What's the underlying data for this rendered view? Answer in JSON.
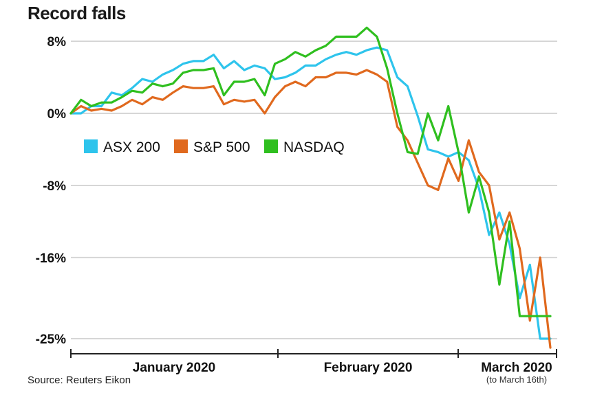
{
  "title": "Record falls",
  "source": "Source: Reuters Eikon",
  "chart_data": {
    "type": "line",
    "title": "Record falls",
    "xlabel": "",
    "ylabel": "",
    "ylim": [
      -25,
      8
    ],
    "yticks": [
      {
        "value": 8,
        "label": "8%"
      },
      {
        "value": 0,
        "label": "0%"
      },
      {
        "value": -8,
        "label": "-8%"
      },
      {
        "value": -16,
        "label": "-16%"
      },
      {
        "value": -25,
        "label": "-25%"
      }
    ],
    "x_categories": [
      {
        "label": "January 2020",
        "note": ""
      },
      {
        "label": "February 2020",
        "note": ""
      },
      {
        "label": "March 2020",
        "note": "(to March 16th)"
      }
    ],
    "legend_position": "middle-left",
    "grid": true,
    "series": [
      {
        "name": "ASX 200",
        "color": "#2ec4ec",
        "x": [
          0,
          1,
          2,
          3,
          4,
          5,
          6,
          7,
          8,
          9,
          10,
          11,
          12,
          13,
          14,
          15,
          16,
          17,
          18,
          19,
          20,
          21,
          22,
          23,
          24,
          25,
          26,
          27,
          28,
          29,
          30,
          31,
          32,
          33,
          34,
          35,
          36,
          37,
          38,
          39,
          40,
          41,
          42,
          43,
          44,
          45,
          46,
          47,
          48,
          49,
          50
        ],
        "values": [
          0,
          0,
          0.8,
          0.8,
          2.3,
          2.0,
          2.8,
          3.8,
          3.5,
          4.3,
          4.8,
          5.5,
          5.8,
          5.8,
          6.5,
          5.0,
          5.8,
          4.8,
          5.3,
          5.0,
          3.8,
          4.0,
          4.5,
          5.3,
          5.3,
          6.0,
          6.5,
          6.8,
          6.5,
          7.0,
          7.3,
          7.0,
          4.0,
          3.0,
          -0.3,
          -4.0,
          -4.3,
          -4.8,
          -4.3,
          -5.2,
          -8.3,
          -13.5,
          -11.0,
          -14.5,
          -20.5,
          -16.8,
          -25.0,
          -25.0,
          -25.0,
          -25.0,
          -25.0
        ]
      },
      {
        "name": "S&P 500",
        "color": "#e0691e",
        "x": [
          0,
          1,
          2,
          3,
          4,
          5,
          6,
          7,
          8,
          9,
          10,
          11,
          12,
          13,
          14,
          15,
          16,
          17,
          18,
          19,
          20,
          21,
          22,
          23,
          24,
          25,
          26,
          27,
          28,
          29,
          30,
          31,
          32,
          33,
          34,
          35,
          36,
          37,
          38,
          39,
          40,
          41,
          42,
          43,
          44,
          45,
          46,
          47,
          48,
          49,
          50
        ],
        "values": [
          0,
          0.8,
          0.3,
          0.5,
          0.3,
          0.8,
          1.5,
          1.0,
          1.8,
          1.5,
          2.3,
          3.0,
          2.8,
          2.8,
          3.0,
          1.0,
          1.5,
          1.3,
          1.5,
          0,
          1.8,
          3.0,
          3.5,
          3.0,
          4.0,
          4.0,
          4.5,
          4.5,
          4.3,
          4.8,
          4.3,
          3.5,
          -1.5,
          -3.0,
          -5.5,
          -8.0,
          -8.5,
          -5.0,
          -7.5,
          -3.0,
          -6.5,
          -8.0,
          -14.0,
          -11.0,
          -15.0,
          -23.0,
          -16.0,
          -26.0,
          -26.0,
          -26.0,
          -26.0
        ]
      },
      {
        "name": "NASDAQ",
        "color": "#2fbf1f",
        "x": [
          0,
          1,
          2,
          3,
          4,
          5,
          6,
          7,
          8,
          9,
          10,
          11,
          12,
          13,
          14,
          15,
          16,
          17,
          18,
          19,
          20,
          21,
          22,
          23,
          24,
          25,
          26,
          27,
          28,
          29,
          30,
          31,
          32,
          33,
          34,
          35,
          36,
          37,
          38,
          39,
          40,
          41,
          42,
          43,
          44,
          45,
          46,
          47,
          48,
          49,
          50
        ],
        "values": [
          0,
          1.5,
          0.8,
          1.2,
          1.2,
          1.8,
          2.5,
          2.3,
          3.3,
          3.0,
          3.3,
          4.5,
          4.8,
          4.8,
          5.0,
          2.0,
          3.5,
          3.5,
          3.8,
          2.0,
          5.5,
          6.0,
          6.8,
          6.3,
          7.0,
          7.5,
          8.5,
          8.5,
          8.5,
          9.5,
          8.5,
          5.0,
          0,
          -4.3,
          -4.5,
          0,
          -3.0,
          0.8,
          -4.3,
          -11.0,
          -7.0,
          -11.0,
          -19.0,
          -12.0,
          -22.5,
          -22.5,
          -22.5,
          -22.5,
          -22.5,
          -22.5,
          -22.5
        ]
      }
    ]
  }
}
